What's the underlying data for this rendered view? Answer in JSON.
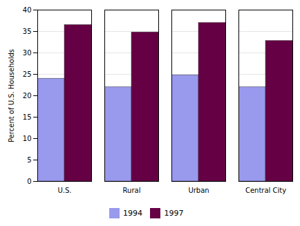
{
  "chart_data": {
    "type": "bar",
    "categories": [
      "U.S.",
      "Rural",
      "Urban",
      "Central City"
    ],
    "series": [
      {
        "name": "1994",
        "color": "#9999ee",
        "values": [
          24.0,
          22.0,
          24.8,
          22.0
        ]
      },
      {
        "name": "1997",
        "color": "#660044",
        "values": [
          36.5,
          34.8,
          37.0,
          32.8
        ]
      }
    ],
    "ylabel": "Percent of U.S. Households",
    "ylim": [
      0,
      40
    ],
    "yticks": [
      0,
      5,
      10,
      15,
      20,
      25,
      30,
      35,
      40
    ],
    "grid": true,
    "legend": "bottom"
  }
}
